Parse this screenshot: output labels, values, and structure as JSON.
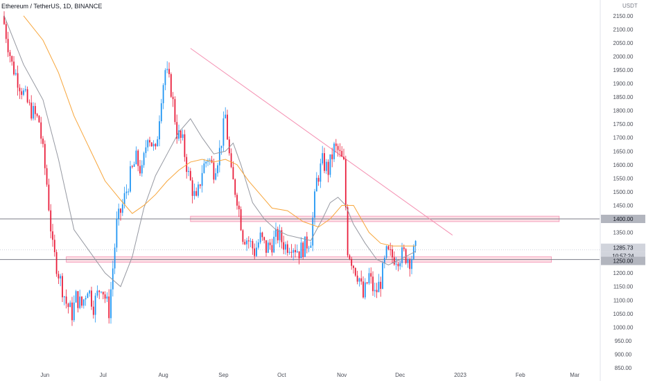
{
  "header": {
    "symbol": "Ethereum / TetherUS",
    "interval": "1D",
    "exchange": "BINANCE",
    "title_text": "Ethereum / TetherUS, 1D, BINANCE",
    "currency": "USDT"
  },
  "colors": {
    "up": "#2196f3",
    "down": "#e91e3b",
    "ma_fast": "#9598a1",
    "ma_slow": "#f7a53a",
    "trendline": "#f48fb1",
    "zone_fill": "#fde0e6",
    "zone_border": "#f48fb1",
    "level_line": "#787b86",
    "label_bg_dark": "#d1d4dc",
    "label_bg_grey": "#b2b5be"
  },
  "chart_data": {
    "type": "candlestick",
    "ylim": [
      850,
      2170
    ],
    "y_ticks": [
      850,
      900,
      950,
      1000,
      1050,
      1100,
      1150,
      1200,
      1250,
      1300,
      1350,
      1400,
      1450,
      1500,
      1550,
      1600,
      1650,
      1700,
      1750,
      1800,
      1850,
      1900,
      1950,
      2000,
      2050,
      2100,
      2150
    ],
    "y_tick_labels": [
      "850.00",
      "900.00",
      "950.00",
      "1000.00",
      "1050.00",
      "1100.00",
      "1150.00",
      "1200.00",
      "1250.00",
      "1300.00",
      "1350.00",
      "1400.00",
      "1450.00",
      "1500.00",
      "1550.00",
      "1600.00",
      "1650.00",
      "1700.00",
      "1750.00",
      "1800.00",
      "1850.00",
      "1900.00",
      "1950.00",
      "2000.00",
      "2050.00",
      "2100.00",
      "2150.00"
    ],
    "x_ticks": [
      {
        "label": "Jun",
        "day": 21
      },
      {
        "label": "Jul",
        "day": 51
      },
      {
        "label": "Aug",
        "day": 82
      },
      {
        "label": "Sep",
        "day": 113
      },
      {
        "label": "Oct",
        "day": 143
      },
      {
        "label": "Nov",
        "day": 174
      },
      {
        "label": "Dec",
        "day": 204
      },
      {
        "label": "2023",
        "day": 235
      },
      {
        "label": "Feb",
        "day": 266
      },
      {
        "label": "Mar",
        "day": 294
      }
    ],
    "series": [
      {
        "name": "price",
        "kind": "close",
        "days": [
          0,
          4,
          9,
          13,
          18,
          22,
          25,
          28,
          32,
          35,
          37,
          40,
          43,
          46,
          50,
          54,
          58,
          61,
          65,
          68,
          71,
          74,
          78,
          81,
          83,
          86,
          89,
          92,
          95,
          99,
          102,
          105,
          108,
          111,
          114,
          117,
          120,
          123,
          126,
          129,
          132,
          135,
          138,
          141,
          145,
          148,
          152,
          155,
          158,
          161,
          164,
          167,
          170,
          172,
          175,
          177,
          180,
          183,
          185,
          188,
          191,
          194,
          197,
          200,
          203,
          206,
          209,
          212
        ],
        "values": [
          2120,
          1970,
          1880,
          1810,
          1760,
          1530,
          1290,
          1200,
          1090,
          1050,
          1110,
          1080,
          1150,
          1080,
          1160,
          1060,
          1380,
          1450,
          1560,
          1620,
          1570,
          1720,
          1640,
          1860,
          1950,
          1880,
          1720,
          1680,
          1560,
          1460,
          1580,
          1630,
          1580,
          1650,
          1780,
          1560,
          1480,
          1340,
          1320,
          1280,
          1330,
          1290,
          1310,
          1340,
          1300,
          1310,
          1280,
          1300,
          1330,
          1540,
          1610,
          1580,
          1660,
          1650,
          1600,
          1290,
          1230,
          1180,
          1110,
          1190,
          1120,
          1170,
          1270,
          1260,
          1260,
          1270,
          1250,
          1285.73
        ]
      },
      {
        "name": "ma_fast",
        "days": [
          0,
          10,
          20,
          28,
          36,
          44,
          52,
          60,
          66,
          72,
          78,
          84,
          90,
          96,
          102,
          108,
          114,
          118,
          122,
          128,
          134,
          140,
          146,
          152,
          158,
          164,
          168,
          172,
          176,
          180,
          186,
          192,
          198,
          204,
          212
        ],
        "values": [
          2150,
          1970,
          1840,
          1620,
          1360,
          1280,
          1200,
          1150,
          1260,
          1440,
          1560,
          1640,
          1720,
          1770,
          1700,
          1640,
          1650,
          1680,
          1600,
          1460,
          1400,
          1360,
          1340,
          1330,
          1320,
          1400,
          1460,
          1480,
          1450,
          1380,
          1310,
          1250,
          1230,
          1250,
          1280
        ]
      },
      {
        "name": "ma_slow",
        "days": [
          10,
          20,
          28,
          36,
          44,
          52,
          60,
          66,
          72,
          78,
          84,
          90,
          96,
          102,
          108,
          114,
          120,
          126,
          132,
          138,
          146,
          154,
          162,
          168,
          174,
          180,
          188,
          194,
          200,
          206,
          212
        ],
        "values": [
          2150,
          2060,
          1940,
          1780,
          1660,
          1540,
          1470,
          1420,
          1450,
          1490,
          1540,
          1580,
          1610,
          1620,
          1610,
          1620,
          1600,
          1540,
          1490,
          1440,
          1430,
          1390,
          1370,
          1400,
          1450,
          1450,
          1350,
          1310,
          1300,
          1300,
          1300
        ]
      }
    ],
    "zones": [
      {
        "name": "resistance-zone",
        "low": 1390,
        "high": 1410,
        "level": 1400
      },
      {
        "name": "support-zone",
        "low": 1240,
        "high": 1260,
        "level": 1250
      }
    ],
    "trendline": {
      "from": {
        "day": 96,
        "value": 2030
      },
      "to": {
        "day": 231,
        "value": 1340
      }
    },
    "price_labels": {
      "current_price": "1285.73",
      "countdown": "10:57:24",
      "level_1400": "1400.00",
      "level_1250": "1250.00"
    }
  }
}
